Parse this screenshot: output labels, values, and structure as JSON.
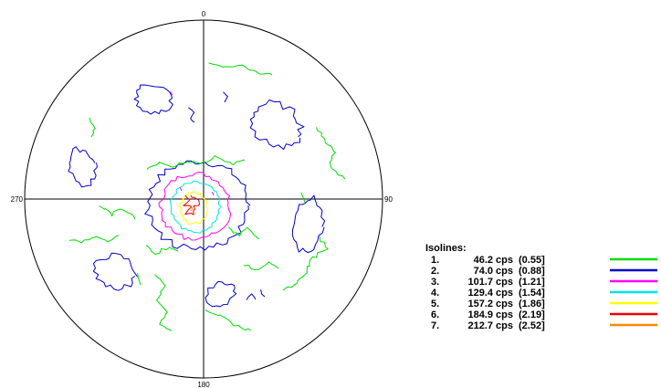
{
  "chart_data": {
    "type": "polar-contour",
    "axis_labels": {
      "top": "0",
      "right": "90",
      "bottom": "180",
      "left": "270"
    },
    "legend_title": "Isolines:",
    "isolines": [
      {
        "index": "1.",
        "value": "46.2 cps",
        "ratio": "(0.55]",
        "color": "#00dd00"
      },
      {
        "index": "2.",
        "value": "74.0 cps",
        "ratio": "(0.88]",
        "color": "#0000cc"
      },
      {
        "index": "3.",
        "value": "101.7 cps",
        "ratio": "(1.21]",
        "color": "#ff00ff"
      },
      {
        "index": "4.",
        "value": "129.4 cps",
        "ratio": "(1.54]",
        "color": "#00e5e5"
      },
      {
        "index": "5.",
        "value": "157.2 cps",
        "ratio": "(1.86]",
        "color": "#ffff00"
      },
      {
        "index": "6.",
        "value": "184.9 cps",
        "ratio": "(2.19]",
        "color": "#ee0000"
      },
      {
        "index": "7.",
        "value": "212.7 cps",
        "ratio": "(2.52]",
        "color": "#ff8800"
      }
    ]
  }
}
